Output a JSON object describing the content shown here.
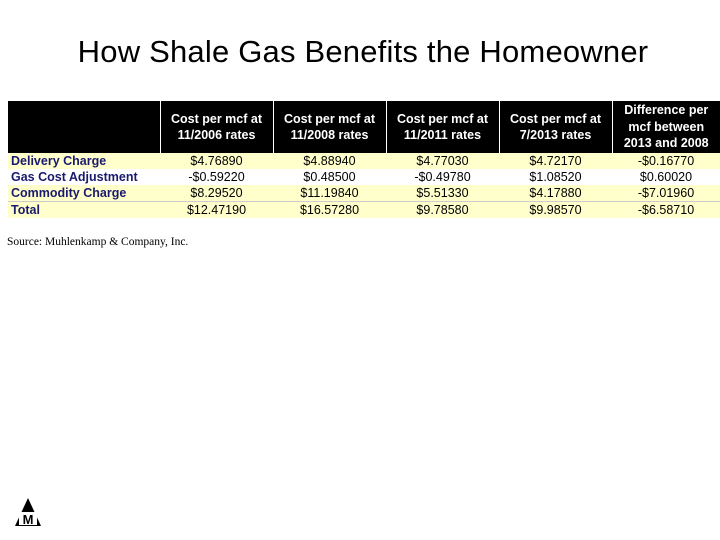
{
  "title": "How Shale Gas Benefits the Homeowner",
  "table": {
    "headers": [
      "",
      "Cost per mcf at 11/2006 rates",
      "Cost per mcf at 11/2008 rates",
      "Cost per mcf at 11/2011 rates",
      "Cost per mcf at 7/2013 rates",
      "Difference per mcf between 2013 and 2008"
    ],
    "rows": [
      [
        "Delivery Charge",
        "$4.76890",
        "$4.88940",
        "$4.77030",
        "$4.72170",
        "-$0.16770"
      ],
      [
        "Gas Cost Adjustment",
        "-$0.59220",
        "$0.48500",
        "-$0.49780",
        "$1.08520",
        "$0.60020"
      ],
      [
        "Commodity Charge",
        "$8.29520",
        "$11.19840",
        "$5.51330",
        "$4.17880",
        "-$7.01960"
      ],
      [
        "Total",
        "$12.47190",
        "$16.57280",
        "$9.78580",
        "$9.98570",
        "-$6.58710"
      ]
    ]
  },
  "source": "Source: Muhlenkamp & Company, Inc.",
  "logo": {
    "icon": "muhlenkamp-m-logo-icon",
    "letter": "M"
  },
  "colors": {
    "header_bg": "#000000",
    "header_text": "#ffffff",
    "row_highlight": "#ffffcc",
    "label_text": "#1a1a6e"
  }
}
